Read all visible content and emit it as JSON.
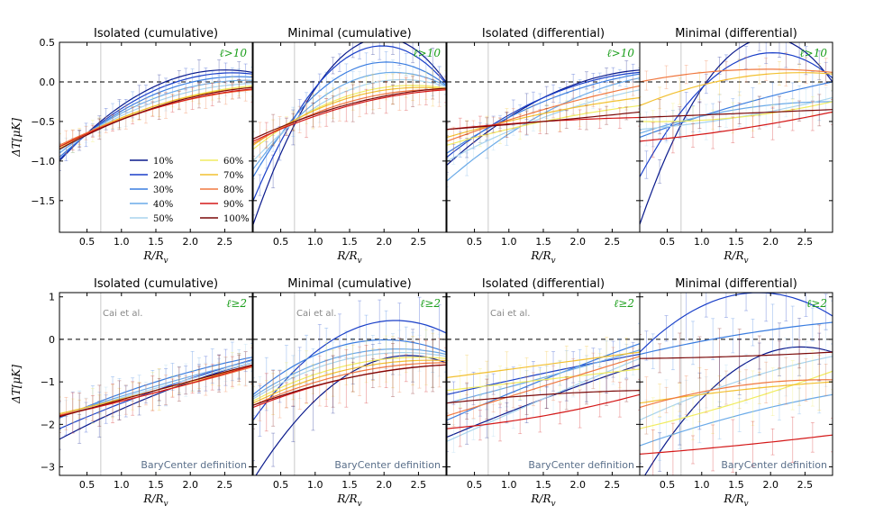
{
  "chart_data": {
    "type": "line",
    "x_range": [
      0.1,
      2.9
    ],
    "x_ticks": [
      "0.5",
      "1.0",
      "1.5",
      "2.0",
      "2.5"
    ],
    "x_tick_values": [
      0.5,
      1.0,
      1.5,
      2.0,
      2.5
    ],
    "xlabel_main": "R/R",
    "xlabel_sub": "v",
    "ylabel": "ΔT[μK]",
    "vertical_marker_x": 0.7,
    "series_names": [
      "10%",
      "20%",
      "30%",
      "40%",
      "50%",
      "60%",
      "70%",
      "80%",
      "90%",
      "100%"
    ],
    "series_colors": [
      "#0a1a8c",
      "#1a3fc8",
      "#3a7de0",
      "#6aaae8",
      "#a8d4ee",
      "#f0ec60",
      "#f2c030",
      "#f07840",
      "#d41818",
      "#7a0808"
    ],
    "rows": [
      {
        "label": "ℓ>10",
        "y_range": [
          -1.9,
          0.5
        ],
        "y_ticks": [
          "−1.5",
          "−1.0",
          "−0.5",
          "0.0",
          "0.5"
        ],
        "y_tick_values": [
          -1.5,
          -1.0,
          -0.5,
          0.0,
          0.5
        ],
        "panels": [
          {
            "title": "Isolated (cumulative)",
            "legend": true,
            "note": "",
            "footer": "",
            "series_endpoints": [
              [
                -1.0,
                0.12
              ],
              [
                -0.98,
                0.1
              ],
              [
                -0.95,
                0.06
              ],
              [
                -0.9,
                0.02
              ],
              [
                -0.87,
                -0.02
              ],
              [
                -0.84,
                -0.05
              ],
              [
                -0.82,
                -0.07
              ],
              [
                -0.8,
                -0.1
              ],
              [
                -0.82,
                -0.09
              ],
              [
                -0.85,
                -0.07
              ]
            ],
            "series_mid": [
              [
                -0.05,
                0.0
              ],
              [
                -0.1,
                0.0
              ],
              [
                -0.15,
                0.0
              ],
              [
                -0.2,
                0.0
              ],
              [
                -0.25,
                0.0
              ],
              [
                -0.3,
                0.0
              ],
              [
                -0.3,
                0.0
              ],
              [
                -0.33,
                0.0
              ],
              [
                -0.33,
                0.0
              ],
              [
                -0.32,
                0.0
              ]
            ]
          },
          {
            "title": "Minimal (cumulative)",
            "legend": false,
            "note": "",
            "footer": "",
            "series_endpoints": [
              [
                -1.8,
                0.0
              ],
              [
                -1.5,
                -0.02
              ],
              [
                -1.2,
                -0.04
              ],
              [
                -1.1,
                -0.05
              ],
              [
                -1.0,
                -0.06
              ],
              [
                -0.85,
                -0.08
              ],
              [
                -0.8,
                -0.09
              ],
              [
                -0.78,
                -0.1
              ],
              [
                -0.75,
                -0.1
              ],
              [
                -0.72,
                -0.08
              ]
            ],
            "series_mid": [
              [
                0.4,
                0.0
              ],
              [
                0.33,
                0.0
              ],
              [
                0.14,
                0.0
              ],
              [
                0.0,
                0.0
              ],
              [
                -0.1,
                0.0
              ],
              [
                -0.17,
                0.0
              ],
              [
                -0.2,
                0.0
              ],
              [
                -0.25,
                0.0
              ],
              [
                -0.3,
                0.0
              ],
              [
                -0.28,
                0.0
              ]
            ]
          },
          {
            "title": "Isolated (differential)",
            "legend": false,
            "note": "",
            "footer": "",
            "series_endpoints": [
              [
                -1.05,
                0.15
              ],
              [
                -0.95,
                0.12
              ],
              [
                -0.9,
                0.1
              ],
              [
                -1.25,
                0.05
              ],
              [
                -1.0,
                -0.1
              ],
              [
                -0.8,
                -0.3
              ],
              [
                -0.7,
                -0.2
              ],
              [
                -0.75,
                -0.05
              ],
              [
                -0.6,
                -0.45
              ],
              [
                -0.6,
                -0.38
              ]
            ],
            "series_mid": [
              [
                -0.2,
                0.0
              ],
              [
                -0.2,
                0.0
              ],
              [
                -0.25,
                0.0
              ],
              [
                -0.4,
                0.0
              ],
              [
                -0.45,
                0.0
              ],
              [
                -0.5,
                0.0
              ],
              [
                -0.4,
                0.0
              ],
              [
                -0.35,
                0.0
              ],
              [
                -0.5,
                0.0
              ],
              [
                -0.5,
                0.0
              ]
            ]
          },
          {
            "title": "Minimal (differential)",
            "legend": false,
            "note": "",
            "footer": "",
            "series_endpoints": [
              [
                -1.8,
                0.0
              ],
              [
                -1.2,
                0.05
              ],
              [
                -0.7,
                0.0
              ],
              [
                -0.65,
                -0.25
              ],
              [
                -0.6,
                -0.2
              ],
              [
                -0.5,
                -0.25
              ],
              [
                -0.3,
                0.1
              ],
              [
                0.0,
                0.12
              ],
              [
                -0.75,
                -0.38
              ],
              [
                -0.45,
                -0.35
              ]
            ],
            "series_mid": [
              [
                0.4,
                0.0
              ],
              [
                0.25,
                0.0
              ],
              [
                -0.3,
                0.0
              ],
              [
                -0.35,
                0.0
              ],
              [
                -0.45,
                0.0
              ],
              [
                -0.45,
                0.0
              ],
              [
                0.05,
                0.0
              ],
              [
                0.15,
                0.0
              ],
              [
                -0.6,
                0.0
              ],
              [
                -0.4,
                0.0
              ]
            ]
          }
        ]
      },
      {
        "label": "ℓ≥2",
        "y_range": [
          -3.2,
          1.1
        ],
        "y_ticks": [
          "−3",
          "−2",
          "−1",
          "0",
          "1"
        ],
        "y_tick_values": [
          -3,
          -2,
          -1,
          0,
          1
        ],
        "panels": [
          {
            "title": "Isolated (cumulative)",
            "legend": false,
            "note": "Cai et al.",
            "footer": "BaryCenter definition",
            "series_endpoints": [
              [
                -2.35,
                -0.55
              ],
              [
                -2.1,
                -0.48
              ],
              [
                -1.85,
                -0.42
              ],
              [
                -1.8,
                -0.5
              ],
              [
                -1.8,
                -0.55
              ],
              [
                -1.75,
                -0.6
              ],
              [
                -1.75,
                -0.62
              ],
              [
                -1.78,
                -0.65
              ],
              [
                -1.8,
                -0.62
              ],
              [
                -1.82,
                -0.6
              ]
            ],
            "series_mid": [
              [
                -1.3,
                0.0
              ],
              [
                -1.2,
                0.0
              ],
              [
                -1.0,
                0.0
              ],
              [
                -1.1,
                0.0
              ],
              [
                -1.15,
                0.0
              ],
              [
                -1.2,
                0.0
              ],
              [
                -1.2,
                0.0
              ],
              [
                -1.25,
                0.0
              ],
              [
                -1.25,
                0.0
              ],
              [
                -1.2,
                0.0
              ]
            ]
          },
          {
            "title": "Minimal (cumulative)",
            "legend": false,
            "note": "Cai et al.",
            "footer": "BaryCenter definition",
            "series_endpoints": [
              [
                -3.3,
                -0.55
              ],
              [
                -1.9,
                0.15
              ],
              [
                -1.3,
                -0.3
              ],
              [
                -1.35,
                -0.35
              ],
              [
                -1.4,
                -0.4
              ],
              [
                -1.45,
                -0.45
              ],
              [
                -1.5,
                -0.5
              ],
              [
                -1.55,
                -0.55
              ],
              [
                -1.6,
                -0.6
              ],
              [
                -1.55,
                -0.6
              ]
            ],
            "series_mid": [
              [
                -0.8,
                0.0
              ],
              [
                0.2,
                0.0
              ],
              [
                -0.1,
                0.0
              ],
              [
                -0.35,
                0.0
              ],
              [
                -0.45,
                0.0
              ],
              [
                -0.6,
                0.0
              ],
              [
                -0.7,
                0.0
              ],
              [
                -0.8,
                0.0
              ],
              [
                -0.9,
                0.0
              ],
              [
                -0.9,
                0.0
              ]
            ]
          },
          {
            "title": "Isolated (differential)",
            "legend": false,
            "note": "Cai et al.",
            "footer": "BaryCenter definition",
            "series_endpoints": [
              [
                -2.3,
                -0.6
              ],
              [
                -1.3,
                -0.35
              ],
              [
                -1.9,
                -0.1
              ],
              [
                -1.5,
                -0.25
              ],
              [
                -2.4,
                -0.45
              ],
              [
                -1.2,
                -0.7
              ],
              [
                -0.9,
                -0.3
              ],
              [
                -1.8,
                -0.4
              ],
              [
                -2.1,
                -1.3
              ],
              [
                -1.5,
                -1.2
              ]
            ],
            "series_mid": [
              [
                -1.4,
                0.0
              ],
              [
                -0.8,
                0.0
              ],
              [
                -0.95,
                0.0
              ],
              [
                -0.9,
                0.0
              ],
              [
                -1.4,
                0.0
              ],
              [
                -0.95,
                0.0
              ],
              [
                -0.6,
                0.0
              ],
              [
                -1.1,
                0.0
              ],
              [
                -1.8,
                0.0
              ],
              [
                -1.3,
                0.0
              ]
            ]
          },
          {
            "title": "Minimal (differential)",
            "legend": false,
            "note": "",
            "footer": "BaryCenter definition",
            "series_endpoints": [
              [
                -3.4,
                -0.3
              ],
              [
                -0.3,
                0.55
              ],
              [
                -0.35,
                0.4
              ],
              [
                -2.5,
                -1.3
              ],
              [
                -1.9,
                -0.4
              ],
              [
                -2.1,
                -0.75
              ],
              [
                -1.5,
                -1.0
              ],
              [
                -1.6,
                -0.95
              ],
              [
                -2.7,
                -2.25
              ],
              [
                -0.45,
                -0.3
              ]
            ],
            "series_mid": [
              [
                -0.7,
                0.0
              ],
              [
                1.05,
                0.0
              ],
              [
                0.1,
                0.0
              ],
              [
                -1.8,
                0.0
              ],
              [
                -1.0,
                0.0
              ],
              [
                -1.5,
                0.0
              ],
              [
                -1.2,
                0.0
              ],
              [
                -1.1,
                0.0
              ],
              [
                -2.5,
                0.0
              ],
              [
                -0.4,
                0.0
              ]
            ]
          }
        ]
      }
    ]
  }
}
